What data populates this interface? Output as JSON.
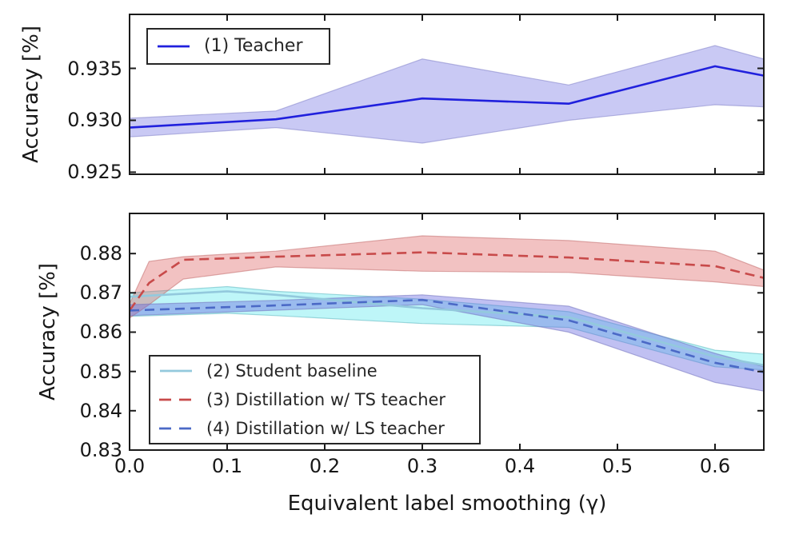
{
  "figure": {
    "background": "#ffffff",
    "frame_color": "#1a1a1a",
    "text_color": "#171717"
  },
  "chart_data": [
    {
      "type": "line",
      "panel": "top",
      "title": "",
      "xlabel": "",
      "ylabel": "Accuracy [%]",
      "xlim": [
        0,
        0.65
      ],
      "ylim": [
        0.9248,
        0.9402
      ],
      "grid": false,
      "xticks": [
        0.0,
        0.1,
        0.2,
        0.3,
        0.4,
        0.5,
        0.6
      ],
      "xtick_labels": [
        "",
        "",
        "",
        "",
        "",
        "",
        ""
      ],
      "yticks": [
        0.925,
        0.93,
        0.935
      ],
      "ytick_labels": [
        "0.925",
        "0.930",
        "0.935"
      ],
      "legend_position": "upper left",
      "series": [
        {
          "key": "teacher",
          "name": "(1) Teacher",
          "line_style": "solid",
          "color": "#2020dd",
          "band_fill": "rgba(75,75,220,0.30)",
          "band_edge": "rgba(130,130,200,0.55)",
          "x": [
            0.0,
            0.15,
            0.3,
            0.45,
            0.6,
            0.65
          ],
          "mean": [
            0.9293,
            0.9301,
            0.9321,
            0.9316,
            0.9352,
            0.9343
          ],
          "upper": [
            0.9302,
            0.9309,
            0.9359,
            0.9334,
            0.9372,
            0.9359
          ],
          "lower": [
            0.9284,
            0.9293,
            0.9278,
            0.93,
            0.9315,
            0.9313
          ]
        }
      ]
    },
    {
      "type": "line",
      "panel": "bottom",
      "title": "",
      "xlabel": "Equivalent label smoothing (γ)",
      "ylabel": "Accuracy [%]",
      "xlim": [
        0,
        0.65
      ],
      "ylim": [
        0.83,
        0.8902
      ],
      "grid": false,
      "xticks": [
        0.0,
        0.1,
        0.2,
        0.3,
        0.4,
        0.5,
        0.6
      ],
      "xtick_labels": [
        "0.0",
        "0.1",
        "0.2",
        "0.3",
        "0.4",
        "0.5",
        "0.6"
      ],
      "yticks": [
        0.83,
        0.84,
        0.85,
        0.86,
        0.87,
        0.88
      ],
      "ytick_labels": [
        "0.83",
        "0.84",
        "0.85",
        "0.86",
        "0.87",
        "0.88"
      ],
      "legend_position": "lower left",
      "series": [
        {
          "key": "student-baseline",
          "name": "(2) Student baseline",
          "line_style": "solid",
          "color": "#93c9dd",
          "band_fill": "rgba(110,235,240,0.45)",
          "band_edge": "rgba(80,175,185,0.50)",
          "x": [
            0.0,
            0.1,
            0.15,
            0.3,
            0.45,
            0.6,
            0.65
          ],
          "mean": [
            0.869,
            0.8704,
            0.8695,
            0.8661,
            0.8638,
            0.8538,
            0.8516
          ],
          "upper": [
            0.87,
            0.8716,
            0.8704,
            0.8684,
            0.8652,
            0.8554,
            0.8544
          ],
          "lower": [
            0.864,
            0.8648,
            0.8642,
            0.8622,
            0.8612,
            0.8512,
            0.8504
          ]
        },
        {
          "key": "distill-ts-teacher",
          "name": "(3) Distillation w/ TS teacher",
          "line_style": "dashed",
          "color": "#c84a4a",
          "band_fill": "rgba(220,95,95,0.38)",
          "band_edge": "rgba(195,110,110,0.55)",
          "x": [
            0.0,
            0.02,
            0.055,
            0.15,
            0.3,
            0.45,
            0.6,
            0.65
          ],
          "mean": [
            0.8655,
            0.8725,
            0.8784,
            0.8792,
            0.8803,
            0.879,
            0.8768,
            0.8738
          ],
          "upper": [
            0.8672,
            0.878,
            0.8792,
            0.8806,
            0.8845,
            0.8833,
            0.8806,
            0.8758
          ],
          "lower": [
            0.8636,
            0.867,
            0.8735,
            0.8766,
            0.8755,
            0.8752,
            0.8728,
            0.8716
          ]
        },
        {
          "key": "distill-ls-teacher",
          "name": "(4) Distillation w/ LS teacher",
          "line_style": "dashed",
          "color": "#4b69c6",
          "band_fill": "rgba(105,105,225,0.42)",
          "band_edge": "rgba(115,115,190,0.55)",
          "x": [
            0.0,
            0.15,
            0.3,
            0.45,
            0.6,
            0.65
          ],
          "mean": [
            0.8655,
            0.8668,
            0.8682,
            0.863,
            0.8522,
            0.8498
          ],
          "upper": [
            0.867,
            0.8681,
            0.8695,
            0.8666,
            0.8546,
            0.8512
          ],
          "lower": [
            0.8642,
            0.8656,
            0.867,
            0.86,
            0.8472,
            0.845
          ]
        }
      ]
    }
  ]
}
